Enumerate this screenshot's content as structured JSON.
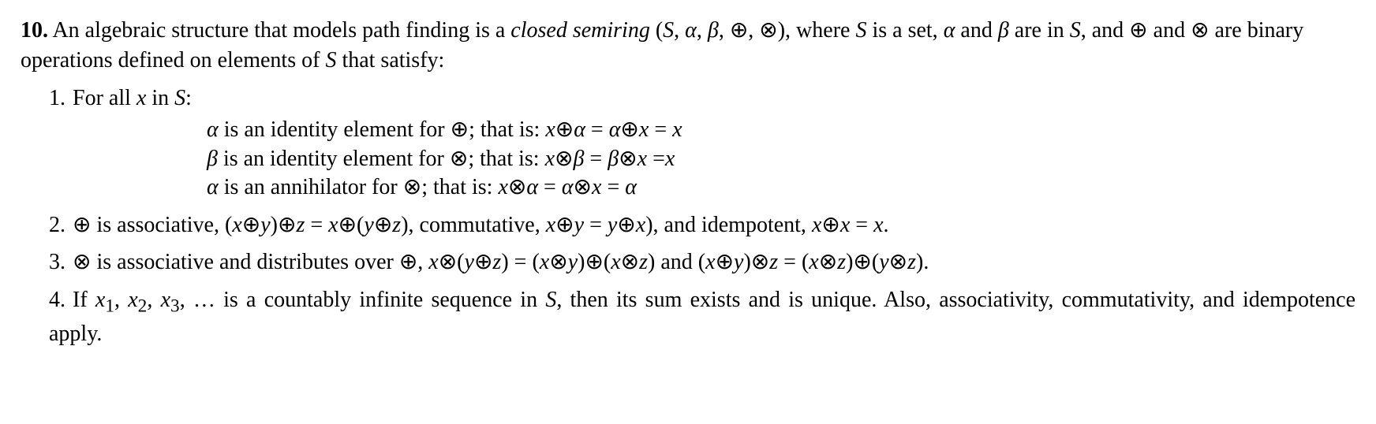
{
  "intro": {
    "num": "10.",
    "a": " An algebraic structure that models path finding is a ",
    "b": "closed semiring",
    "c": " (",
    "d": "S",
    "e": ", ",
    "f": "α",
    "g": ", ",
    "h": "β",
    "i": ", ⊕, ⊗), where ",
    "j": "S",
    "k": " is a set, ",
    "l": "α",
    "m": " and ",
    "n": "β",
    "o": " are in ",
    "p": "S",
    "q": ", and ⊕ and ⊗ are binary operations defined on elements of ",
    "r": "S",
    "s": " that satisfy:"
  },
  "item1": {
    "num": "1.",
    "a": "For all ",
    "b": "x",
    "c": " in ",
    "d": "S",
    "e": ":"
  },
  "sub1": {
    "a": "α",
    "b": " is an identity element for ⊕; that is: ",
    "c": "x",
    "d": "⊕",
    "e": "α",
    "f": " = ",
    "g": "α",
    "h": "⊕",
    "i": "x",
    "j": " = ",
    "k": "x"
  },
  "sub2": {
    "a": "β",
    "b": " is an identity element for ⊗; that is: ",
    "c": "x",
    "d": "⊗",
    "e": "β",
    "f": " = ",
    "g": "β",
    "h": "⊗",
    "i": "x",
    "j": " =",
    "k": "x"
  },
  "sub3": {
    "a": "α",
    "b": " is an annihilator for ⊗; that is: ",
    "c": "x",
    "d": "⊗",
    "e": "α",
    "f": " = ",
    "g": "α",
    "h": "⊗",
    "i": "x",
    "j": " = ",
    "k": "α"
  },
  "item2": {
    "num": "2.",
    "a": "⊕ is associative, (",
    "b": "x",
    "c": "⊕",
    "d": "y",
    "e": ")⊕",
    "f": "z",
    "g": " = ",
    "h": "x",
    "i": "⊕(",
    "j": "y",
    "k": "⊕",
    "l": "z",
    "m": "), commutative, ",
    "n": "x",
    "o": "⊕",
    "p": "y",
    "q": " = ",
    "r": "y",
    "s": "⊕",
    "t": "x",
    "u": "), and idempotent, ",
    "v": "x",
    "w": "⊕",
    "x": "x",
    "y": " = ",
    "z": "x",
    "aa": "."
  },
  "item3": {
    "num": "3.",
    "a": "⊗ is associative and distributes over ⊕, ",
    "b": "x",
    "c": "⊗(",
    "d": "y",
    "e": "⊕",
    "f": "z",
    "g": ") = (",
    "h": "x",
    "i": "⊗",
    "j": "y",
    "k": ")⊕(",
    "l": "x",
    "m": "⊗",
    "n": "z",
    "o": ") and (",
    "p": "x",
    "q": "⊕",
    "r": "y",
    "s": ")⊗",
    "t": "z",
    "u": " = (",
    "v": "x",
    "w": "⊗",
    "x": "z",
    "y": ")⊕(",
    "z": "y",
    "aa": "⊗",
    "ab": "z",
    "ac": ")."
  },
  "item4": {
    "num": "4.",
    "a": "If ",
    "b": "x",
    "c": "1",
    "d": ", ",
    "e": "x",
    "f": "2",
    "g": ", ",
    "h": "x",
    "i": "3",
    "j": ", … is a countably infinite sequence in ",
    "k": "S",
    "l": ", then its sum exists and is unique. Also, associativity, commutativity, and idempotence apply."
  }
}
